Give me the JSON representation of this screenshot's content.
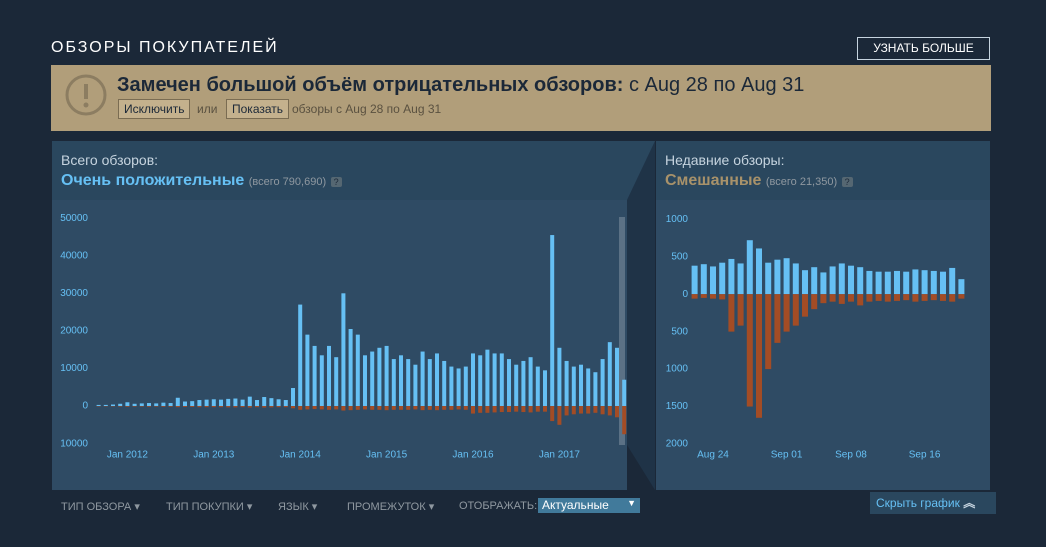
{
  "section_title": "ОБЗОРЫ ПОКУПАТЕЛЕЙ",
  "learn_more": "УЗНАТЬ БОЛЬШЕ",
  "banner": {
    "headline": "Замечен большой объём отрицательных обзоров:",
    "range": "с Aug 28 по Aug 31",
    "exclude": "Исключить",
    "or": "или",
    "show": "Показать",
    "note": "обзоры с Aug 28 по Aug 31"
  },
  "overall": {
    "label": "Всего обзоров:",
    "rating": "Очень положительные",
    "total": "(всего 790,690)",
    "help": "?"
  },
  "recent": {
    "label": "Недавние обзоры:",
    "rating": "Смешанные",
    "total": "(всего 21,350)",
    "help": "?"
  },
  "filters": {
    "review_type": "ТИП ОБЗОРА",
    "purchase_type": "ТИП ПОКУПКИ",
    "language": "ЯЗЫК",
    "period": "ПРОМЕЖУТОК",
    "display": "ОТОБРАЖАТЬ:",
    "display_value": "Актуальные",
    "hide_graph": "Скрыть график"
  },
  "chart_data": [
    {
      "type": "bar",
      "categories": [
        null,
        null,
        null,
        null,
        "Jan 2012",
        null,
        null,
        null,
        null,
        null,
        null,
        null,
        null,
        null,
        null,
        null,
        "Jan 2013",
        null,
        null,
        null,
        null,
        null,
        null,
        null,
        null,
        null,
        null,
        null,
        "Jan 2014",
        null,
        null,
        null,
        null,
        null,
        null,
        null,
        null,
        null,
        null,
        null,
        "Jan 2015",
        null,
        null,
        null,
        null,
        null,
        null,
        null,
        null,
        null,
        null,
        null,
        "Jan 2016",
        null,
        null,
        null,
        null,
        null,
        null,
        null,
        null,
        null,
        null,
        null,
        "Jan 2017",
        null,
        null,
        null,
        null,
        null,
        null,
        null,
        null,
        null
      ],
      "series": [
        {
          "color": "#66c0f4",
          "values": [
            300,
            300,
            400,
            600,
            1000,
            600,
            700,
            800,
            700,
            900,
            800,
            2200,
            1200,
            1300,
            1600,
            1700,
            1800,
            1700,
            1900,
            2000,
            1700,
            2500,
            1600,
            2400,
            2100,
            1800,
            1600,
            4800,
            27000,
            19000,
            16000,
            13500,
            16000,
            13000,
            30000,
            20500,
            19000,
            13500,
            14500,
            15500,
            16000,
            12500,
            13500,
            12500,
            11000,
            14500,
            12500,
            14000,
            12000,
            10500,
            10000,
            10500,
            14000,
            13500,
            15000,
            14000,
            14000,
            12500,
            11000,
            12000,
            13000,
            10500,
            9500,
            45500,
            15500,
            12000,
            10500,
            11000,
            10000,
            9000,
            12500,
            17000,
            15500,
            7000
          ]
        },
        {
          "color": "#a34c25",
          "values": [
            -100,
            -100,
            -100,
            -150,
            -200,
            -150,
            -150,
            -200,
            -150,
            -200,
            -200,
            -300,
            -250,
            -250,
            -300,
            -300,
            -300,
            -300,
            -350,
            -350,
            -300,
            -400,
            -300,
            -400,
            -350,
            -300,
            -300,
            -600,
            -1000,
            -900,
            -800,
            -900,
            -1000,
            -900,
            -1200,
            -1100,
            -1000,
            -900,
            -1000,
            -1000,
            -1100,
            -1000,
            -1000,
            -1000,
            -900,
            -1100,
            -1000,
            -1100,
            -1000,
            -1000,
            -900,
            -1000,
            -2000,
            -1800,
            -1800,
            -1700,
            -1600,
            -1600,
            -1500,
            -1600,
            -1700,
            -1500,
            -1500,
            -4000,
            -5000,
            -2500,
            -2200,
            -2000,
            -2000,
            -1800,
            -2200,
            -2500,
            -3000,
            -7500
          ]
        }
      ],
      "ylim": [
        -11700,
        53500
      ],
      "yticks": [
        50000,
        40000,
        30000,
        20000,
        10000,
        0,
        {
          "value": -10000,
          "label": "10000"
        }
      ],
      "grid": false
    },
    {
      "type": "bar",
      "categories": [
        null,
        null,
        "Aug 24",
        null,
        null,
        null,
        null,
        null,
        null,
        null,
        "Sep 01",
        null,
        null,
        null,
        null,
        null,
        null,
        "Sep 08",
        null,
        null,
        null,
        null,
        null,
        null,
        null,
        "Sep 16",
        null,
        null,
        null,
        null
      ],
      "series": [
        {
          "color": "#66c0f4",
          "values": [
            380,
            400,
            370,
            420,
            470,
            410,
            720,
            610,
            420,
            460,
            480,
            410,
            320,
            360,
            290,
            370,
            410,
            380,
            360,
            310,
            300,
            300,
            310,
            300,
            330,
            320,
            310,
            300,
            350,
            200
          ]
        },
        {
          "color": "#a34c25",
          "values": [
            -60,
            -50,
            -60,
            -70,
            -500,
            -420,
            -1500,
            -1650,
            -1000,
            -650,
            -500,
            -420,
            -300,
            -200,
            -120,
            -100,
            -130,
            -100,
            -150,
            -100,
            -90,
            -100,
            -90,
            -80,
            -100,
            -90,
            -80,
            -90,
            -100,
            -60
          ]
        }
      ],
      "ylim": [
        -2080,
        1190
      ],
      "yticks": [
        1000,
        500,
        0,
        {
          "value": -500,
          "label": "500"
        },
        {
          "value": -1000,
          "label": "1000"
        },
        {
          "value": -1500,
          "label": "1500"
        },
        {
          "value": -2000,
          "label": "2000"
        }
      ],
      "grid": false
    }
  ]
}
